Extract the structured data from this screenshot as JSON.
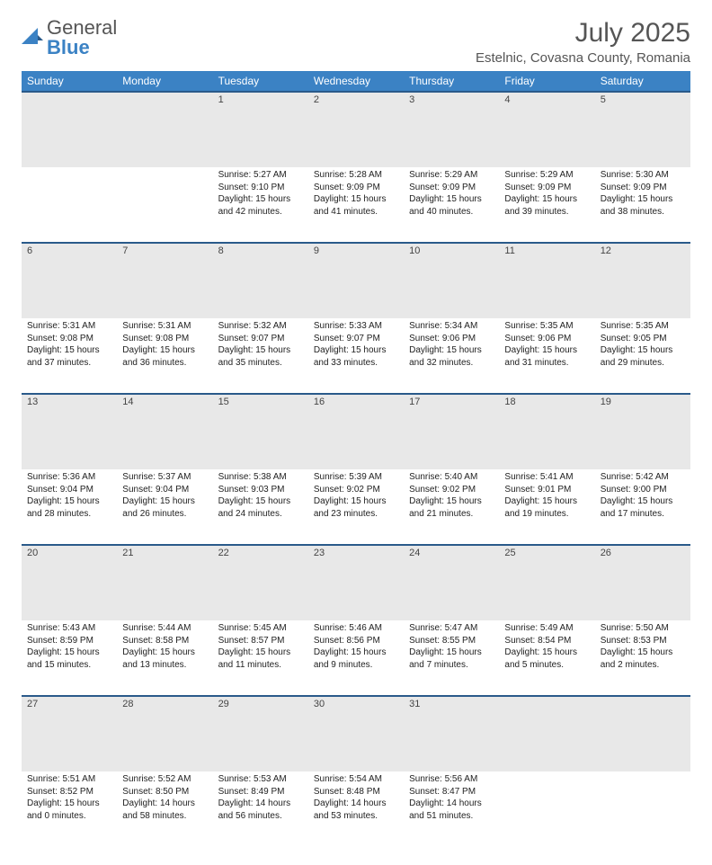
{
  "logo": {
    "general": "General",
    "blue": "Blue"
  },
  "title": "July 2025",
  "location": "Estelnic, Covasna County, Romania",
  "colors": {
    "header_bg": "#3b82c4",
    "header_text": "#ffffff",
    "daynum_bg": "#e8e8e8",
    "border": "#2a5a8a",
    "text": "#222222",
    "title_text": "#555555"
  },
  "weekdays": [
    "Sunday",
    "Monday",
    "Tuesday",
    "Wednesday",
    "Thursday",
    "Friday",
    "Saturday"
  ],
  "weeks": [
    [
      null,
      null,
      {
        "n": "1",
        "sr": "5:27 AM",
        "ss": "9:10 PM",
        "dl": "15 hours and 42 minutes."
      },
      {
        "n": "2",
        "sr": "5:28 AM",
        "ss": "9:09 PM",
        "dl": "15 hours and 41 minutes."
      },
      {
        "n": "3",
        "sr": "5:29 AM",
        "ss": "9:09 PM",
        "dl": "15 hours and 40 minutes."
      },
      {
        "n": "4",
        "sr": "5:29 AM",
        "ss": "9:09 PM",
        "dl": "15 hours and 39 minutes."
      },
      {
        "n": "5",
        "sr": "5:30 AM",
        "ss": "9:09 PM",
        "dl": "15 hours and 38 minutes."
      }
    ],
    [
      {
        "n": "6",
        "sr": "5:31 AM",
        "ss": "9:08 PM",
        "dl": "15 hours and 37 minutes."
      },
      {
        "n": "7",
        "sr": "5:31 AM",
        "ss": "9:08 PM",
        "dl": "15 hours and 36 minutes."
      },
      {
        "n": "8",
        "sr": "5:32 AM",
        "ss": "9:07 PM",
        "dl": "15 hours and 35 minutes."
      },
      {
        "n": "9",
        "sr": "5:33 AM",
        "ss": "9:07 PM",
        "dl": "15 hours and 33 minutes."
      },
      {
        "n": "10",
        "sr": "5:34 AM",
        "ss": "9:06 PM",
        "dl": "15 hours and 32 minutes."
      },
      {
        "n": "11",
        "sr": "5:35 AM",
        "ss": "9:06 PM",
        "dl": "15 hours and 31 minutes."
      },
      {
        "n": "12",
        "sr": "5:35 AM",
        "ss": "9:05 PM",
        "dl": "15 hours and 29 minutes."
      }
    ],
    [
      {
        "n": "13",
        "sr": "5:36 AM",
        "ss": "9:04 PM",
        "dl": "15 hours and 28 minutes."
      },
      {
        "n": "14",
        "sr": "5:37 AM",
        "ss": "9:04 PM",
        "dl": "15 hours and 26 minutes."
      },
      {
        "n": "15",
        "sr": "5:38 AM",
        "ss": "9:03 PM",
        "dl": "15 hours and 24 minutes."
      },
      {
        "n": "16",
        "sr": "5:39 AM",
        "ss": "9:02 PM",
        "dl": "15 hours and 23 minutes."
      },
      {
        "n": "17",
        "sr": "5:40 AM",
        "ss": "9:02 PM",
        "dl": "15 hours and 21 minutes."
      },
      {
        "n": "18",
        "sr": "5:41 AM",
        "ss": "9:01 PM",
        "dl": "15 hours and 19 minutes."
      },
      {
        "n": "19",
        "sr": "5:42 AM",
        "ss": "9:00 PM",
        "dl": "15 hours and 17 minutes."
      }
    ],
    [
      {
        "n": "20",
        "sr": "5:43 AM",
        "ss": "8:59 PM",
        "dl": "15 hours and 15 minutes."
      },
      {
        "n": "21",
        "sr": "5:44 AM",
        "ss": "8:58 PM",
        "dl": "15 hours and 13 minutes."
      },
      {
        "n": "22",
        "sr": "5:45 AM",
        "ss": "8:57 PM",
        "dl": "15 hours and 11 minutes."
      },
      {
        "n": "23",
        "sr": "5:46 AM",
        "ss": "8:56 PM",
        "dl": "15 hours and 9 minutes."
      },
      {
        "n": "24",
        "sr": "5:47 AM",
        "ss": "8:55 PM",
        "dl": "15 hours and 7 minutes."
      },
      {
        "n": "25",
        "sr": "5:49 AM",
        "ss": "8:54 PM",
        "dl": "15 hours and 5 minutes."
      },
      {
        "n": "26",
        "sr": "5:50 AM",
        "ss": "8:53 PM",
        "dl": "15 hours and 2 minutes."
      }
    ],
    [
      {
        "n": "27",
        "sr": "5:51 AM",
        "ss": "8:52 PM",
        "dl": "15 hours and 0 minutes."
      },
      {
        "n": "28",
        "sr": "5:52 AM",
        "ss": "8:50 PM",
        "dl": "14 hours and 58 minutes."
      },
      {
        "n": "29",
        "sr": "5:53 AM",
        "ss": "8:49 PM",
        "dl": "14 hours and 56 minutes."
      },
      {
        "n": "30",
        "sr": "5:54 AM",
        "ss": "8:48 PM",
        "dl": "14 hours and 53 minutes."
      },
      {
        "n": "31",
        "sr": "5:56 AM",
        "ss": "8:47 PM",
        "dl": "14 hours and 51 minutes."
      },
      null,
      null
    ]
  ],
  "labels": {
    "sunrise": "Sunrise: ",
    "sunset": "Sunset: ",
    "daylight": "Daylight: "
  }
}
